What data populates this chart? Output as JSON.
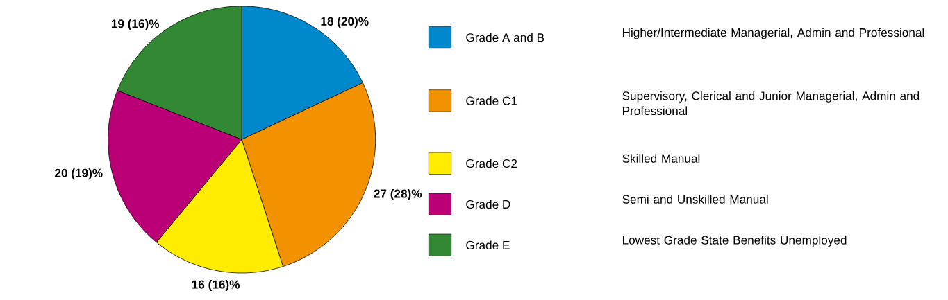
{
  "chart_data": {
    "type": "pie",
    "categories": [
      "Grade A and B",
      "Grade C1",
      "Grade C2",
      "Grade D",
      "Grade E"
    ],
    "values": [
      18,
      27,
      16,
      20,
      19
    ],
    "colors": [
      "#0088cc",
      "#f39200",
      "#ffec00",
      "#bb0077",
      "#338833"
    ],
    "value_labels": [
      "18 (20)%",
      "27 (28)%",
      "16 (16)%",
      "20 (19)%",
      "19 (16)%"
    ],
    "legend": "right",
    "annotations": [
      "Higher/Intermediate Managerial, Admin and Professional",
      "Supervisory, Clerical and Junior Managerial, Admin and Professional",
      "Skilled Manual",
      "Semi and Unskilled Manual",
      "Lowest Grade State Benefits Unemployed"
    ]
  }
}
